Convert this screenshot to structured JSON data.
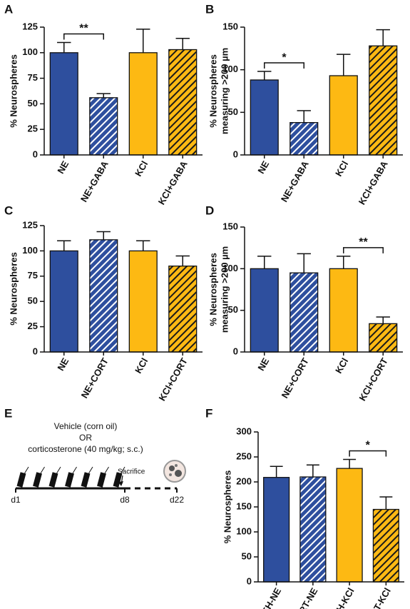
{
  "chart_data": [
    {
      "type": "bar",
      "panel": "A",
      "ylabel": [
        "% Neurospheres"
      ],
      "categories": [
        "NE",
        "NE+GABA",
        "KCl",
        "KCl+GABA"
      ],
      "values": [
        100,
        56,
        100,
        103
      ],
      "errors": [
        10,
        4,
        23,
        11
      ],
      "colors": [
        "#2e4f9e",
        "#2e4f9e",
        "#fdb913",
        "#fdb913"
      ],
      "hatch": [
        null,
        "#ffffff",
        null,
        "#1a1a1a"
      ],
      "ylim": [
        0,
        125
      ],
      "yticks": [
        0,
        25,
        50,
        75,
        100,
        125
      ],
      "significance": [
        {
          "from": 0,
          "to": 1,
          "label": "**"
        }
      ]
    },
    {
      "type": "bar",
      "panel": "B",
      "ylabel": [
        "% Neurospheres",
        "measuring >200 µm"
      ],
      "categories": [
        "NE",
        "NE+GABA",
        "KCl",
        "KCl+GABA"
      ],
      "values": [
        88,
        38,
        93,
        128
      ],
      "errors": [
        10,
        14,
        25,
        19
      ],
      "colors": [
        "#2e4f9e",
        "#2e4f9e",
        "#fdb913",
        "#fdb913"
      ],
      "hatch": [
        null,
        "#ffffff",
        null,
        "#1a1a1a"
      ],
      "ylim": [
        0,
        150
      ],
      "yticks": [
        0,
        50,
        100,
        150
      ],
      "significance": [
        {
          "from": 0,
          "to": 1,
          "label": "*"
        }
      ]
    },
    {
      "type": "bar",
      "panel": "C",
      "ylabel": [
        "% Neurospheres"
      ],
      "categories": [
        "NE",
        "NE+CORT",
        "KCl",
        "KCl+CORT"
      ],
      "values": [
        100,
        111,
        100,
        85
      ],
      "errors": [
        10,
        8,
        10,
        10
      ],
      "colors": [
        "#2e4f9e",
        "#2e4f9e",
        "#fdb913",
        "#fdb913"
      ],
      "hatch": [
        null,
        "#ffffff",
        null,
        "#1a1a1a"
      ],
      "ylim": [
        0,
        125
      ],
      "yticks": [
        0,
        25,
        50,
        75,
        100,
        125
      ],
      "significance": []
    },
    {
      "type": "bar",
      "panel": "D",
      "ylabel": [
        "% Neurospheres",
        "measuring >200 µm"
      ],
      "categories": [
        "NE",
        "NE+CORT",
        "KCl",
        "KCl+CORT"
      ],
      "values": [
        100,
        95,
        100,
        34
      ],
      "errors": [
        15,
        23,
        15,
        8
      ],
      "colors": [
        "#2e4f9e",
        "#2e4f9e",
        "#fdb913",
        "#fdb913"
      ],
      "hatch": [
        null,
        "#ffffff",
        null,
        "#1a1a1a"
      ],
      "ylim": [
        0,
        150
      ],
      "yticks": [
        0,
        50,
        100,
        150
      ],
      "significance": [
        {
          "from": 2,
          "to": 3,
          "label": "**"
        }
      ]
    },
    {
      "type": "bar",
      "panel": "F",
      "ylabel": [
        "% Neurospheres"
      ],
      "categories": [
        "VEH-NE",
        "CORT-NE",
        "VEH-KCl",
        "CORT-KCl"
      ],
      "values": [
        209,
        210,
        227,
        145
      ],
      "errors": [
        22,
        24,
        18,
        25
      ],
      "colors": [
        "#2e4f9e",
        "#2e4f9e",
        "#fdb913",
        "#fdb913"
      ],
      "hatch": [
        null,
        "#ffffff",
        null,
        "#1a1a1a"
      ],
      "ylim": [
        0,
        300
      ],
      "yticks": [
        0,
        50,
        100,
        150,
        200,
        250,
        300
      ],
      "significance": [
        {
          "from": 2,
          "to": 3,
          "label": "*"
        }
      ]
    }
  ],
  "diagram": {
    "panel": "E",
    "lines": [
      "Vehicle (corn oil)",
      "OR",
      "corticosterone (40 mg/kg; s.c.)"
    ],
    "event": "Sacrifice",
    "days": [
      "d1",
      "d8",
      "d22"
    ]
  }
}
